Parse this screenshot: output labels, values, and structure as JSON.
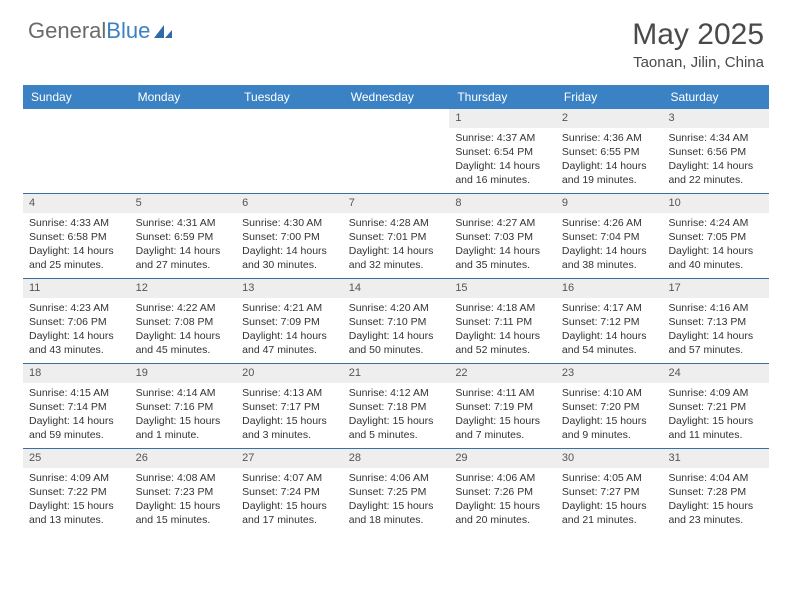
{
  "logo": {
    "text1": "General",
    "text2": "Blue"
  },
  "title": {
    "month": "May 2025",
    "location": "Taonan, Jilin, China"
  },
  "colors": {
    "header_bg": "#3b82c4",
    "header_text": "#ffffff",
    "row_divider": "#3b6fa0",
    "daynum_bg": "#eeeeee",
    "text": "#333333",
    "logo_gray": "#6a6a6a",
    "logo_blue": "#3b7fc4"
  },
  "day_names": [
    "Sunday",
    "Monday",
    "Tuesday",
    "Wednesday",
    "Thursday",
    "Friday",
    "Saturday"
  ],
  "weeks": [
    [
      {
        "empty": true
      },
      {
        "empty": true
      },
      {
        "empty": true
      },
      {
        "empty": true
      },
      {
        "day": "1",
        "sunrise": "Sunrise: 4:37 AM",
        "sunset": "Sunset: 6:54 PM",
        "daylight1": "Daylight: 14 hours",
        "daylight2": "and 16 minutes."
      },
      {
        "day": "2",
        "sunrise": "Sunrise: 4:36 AM",
        "sunset": "Sunset: 6:55 PM",
        "daylight1": "Daylight: 14 hours",
        "daylight2": "and 19 minutes."
      },
      {
        "day": "3",
        "sunrise": "Sunrise: 4:34 AM",
        "sunset": "Sunset: 6:56 PM",
        "daylight1": "Daylight: 14 hours",
        "daylight2": "and 22 minutes."
      }
    ],
    [
      {
        "day": "4",
        "sunrise": "Sunrise: 4:33 AM",
        "sunset": "Sunset: 6:58 PM",
        "daylight1": "Daylight: 14 hours",
        "daylight2": "and 25 minutes."
      },
      {
        "day": "5",
        "sunrise": "Sunrise: 4:31 AM",
        "sunset": "Sunset: 6:59 PM",
        "daylight1": "Daylight: 14 hours",
        "daylight2": "and 27 minutes."
      },
      {
        "day": "6",
        "sunrise": "Sunrise: 4:30 AM",
        "sunset": "Sunset: 7:00 PM",
        "daylight1": "Daylight: 14 hours",
        "daylight2": "and 30 minutes."
      },
      {
        "day": "7",
        "sunrise": "Sunrise: 4:28 AM",
        "sunset": "Sunset: 7:01 PM",
        "daylight1": "Daylight: 14 hours",
        "daylight2": "and 32 minutes."
      },
      {
        "day": "8",
        "sunrise": "Sunrise: 4:27 AM",
        "sunset": "Sunset: 7:03 PM",
        "daylight1": "Daylight: 14 hours",
        "daylight2": "and 35 minutes."
      },
      {
        "day": "9",
        "sunrise": "Sunrise: 4:26 AM",
        "sunset": "Sunset: 7:04 PM",
        "daylight1": "Daylight: 14 hours",
        "daylight2": "and 38 minutes."
      },
      {
        "day": "10",
        "sunrise": "Sunrise: 4:24 AM",
        "sunset": "Sunset: 7:05 PM",
        "daylight1": "Daylight: 14 hours",
        "daylight2": "and 40 minutes."
      }
    ],
    [
      {
        "day": "11",
        "sunrise": "Sunrise: 4:23 AM",
        "sunset": "Sunset: 7:06 PM",
        "daylight1": "Daylight: 14 hours",
        "daylight2": "and 43 minutes."
      },
      {
        "day": "12",
        "sunrise": "Sunrise: 4:22 AM",
        "sunset": "Sunset: 7:08 PM",
        "daylight1": "Daylight: 14 hours",
        "daylight2": "and 45 minutes."
      },
      {
        "day": "13",
        "sunrise": "Sunrise: 4:21 AM",
        "sunset": "Sunset: 7:09 PM",
        "daylight1": "Daylight: 14 hours",
        "daylight2": "and 47 minutes."
      },
      {
        "day": "14",
        "sunrise": "Sunrise: 4:20 AM",
        "sunset": "Sunset: 7:10 PM",
        "daylight1": "Daylight: 14 hours",
        "daylight2": "and 50 minutes."
      },
      {
        "day": "15",
        "sunrise": "Sunrise: 4:18 AM",
        "sunset": "Sunset: 7:11 PM",
        "daylight1": "Daylight: 14 hours",
        "daylight2": "and 52 minutes."
      },
      {
        "day": "16",
        "sunrise": "Sunrise: 4:17 AM",
        "sunset": "Sunset: 7:12 PM",
        "daylight1": "Daylight: 14 hours",
        "daylight2": "and 54 minutes."
      },
      {
        "day": "17",
        "sunrise": "Sunrise: 4:16 AM",
        "sunset": "Sunset: 7:13 PM",
        "daylight1": "Daylight: 14 hours",
        "daylight2": "and 57 minutes."
      }
    ],
    [
      {
        "day": "18",
        "sunrise": "Sunrise: 4:15 AM",
        "sunset": "Sunset: 7:14 PM",
        "daylight1": "Daylight: 14 hours",
        "daylight2": "and 59 minutes."
      },
      {
        "day": "19",
        "sunrise": "Sunrise: 4:14 AM",
        "sunset": "Sunset: 7:16 PM",
        "daylight1": "Daylight: 15 hours",
        "daylight2": "and 1 minute."
      },
      {
        "day": "20",
        "sunrise": "Sunrise: 4:13 AM",
        "sunset": "Sunset: 7:17 PM",
        "daylight1": "Daylight: 15 hours",
        "daylight2": "and 3 minutes."
      },
      {
        "day": "21",
        "sunrise": "Sunrise: 4:12 AM",
        "sunset": "Sunset: 7:18 PM",
        "daylight1": "Daylight: 15 hours",
        "daylight2": "and 5 minutes."
      },
      {
        "day": "22",
        "sunrise": "Sunrise: 4:11 AM",
        "sunset": "Sunset: 7:19 PM",
        "daylight1": "Daylight: 15 hours",
        "daylight2": "and 7 minutes."
      },
      {
        "day": "23",
        "sunrise": "Sunrise: 4:10 AM",
        "sunset": "Sunset: 7:20 PM",
        "daylight1": "Daylight: 15 hours",
        "daylight2": "and 9 minutes."
      },
      {
        "day": "24",
        "sunrise": "Sunrise: 4:09 AM",
        "sunset": "Sunset: 7:21 PM",
        "daylight1": "Daylight: 15 hours",
        "daylight2": "and 11 minutes."
      }
    ],
    [
      {
        "day": "25",
        "sunrise": "Sunrise: 4:09 AM",
        "sunset": "Sunset: 7:22 PM",
        "daylight1": "Daylight: 15 hours",
        "daylight2": "and 13 minutes."
      },
      {
        "day": "26",
        "sunrise": "Sunrise: 4:08 AM",
        "sunset": "Sunset: 7:23 PM",
        "daylight1": "Daylight: 15 hours",
        "daylight2": "and 15 minutes."
      },
      {
        "day": "27",
        "sunrise": "Sunrise: 4:07 AM",
        "sunset": "Sunset: 7:24 PM",
        "daylight1": "Daylight: 15 hours",
        "daylight2": "and 17 minutes."
      },
      {
        "day": "28",
        "sunrise": "Sunrise: 4:06 AM",
        "sunset": "Sunset: 7:25 PM",
        "daylight1": "Daylight: 15 hours",
        "daylight2": "and 18 minutes."
      },
      {
        "day": "29",
        "sunrise": "Sunrise: 4:06 AM",
        "sunset": "Sunset: 7:26 PM",
        "daylight1": "Daylight: 15 hours",
        "daylight2": "and 20 minutes."
      },
      {
        "day": "30",
        "sunrise": "Sunrise: 4:05 AM",
        "sunset": "Sunset: 7:27 PM",
        "daylight1": "Daylight: 15 hours",
        "daylight2": "and 21 minutes."
      },
      {
        "day": "31",
        "sunrise": "Sunrise: 4:04 AM",
        "sunset": "Sunset: 7:28 PM",
        "daylight1": "Daylight: 15 hours",
        "daylight2": "and 23 minutes."
      }
    ]
  ]
}
